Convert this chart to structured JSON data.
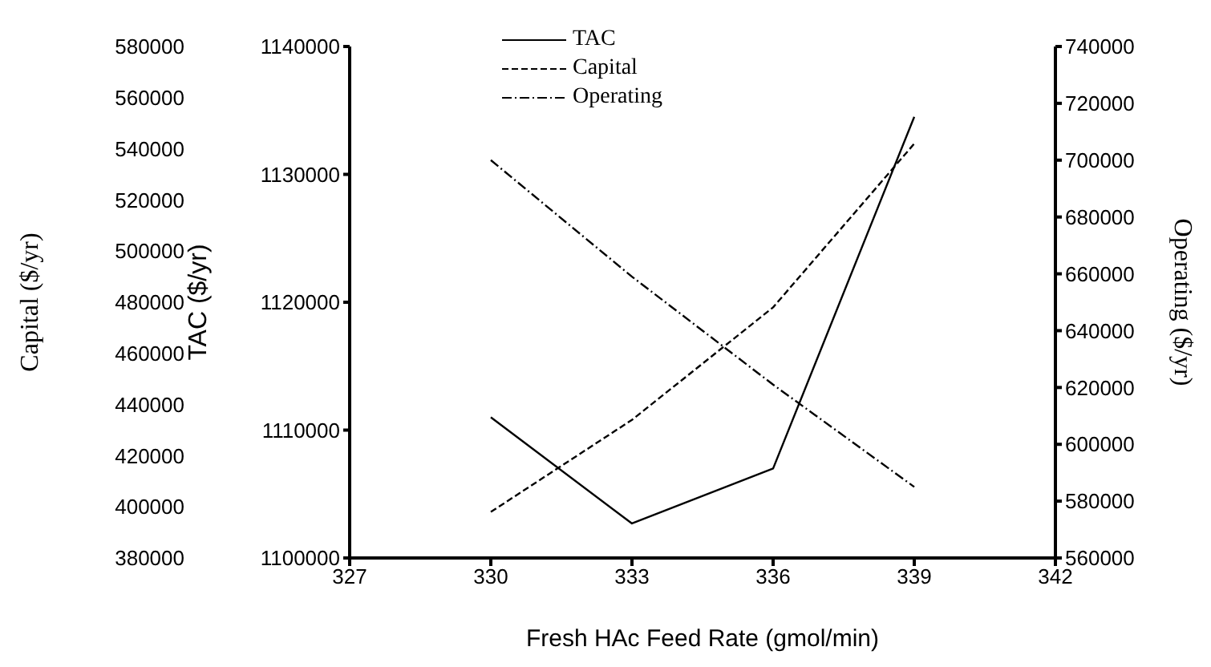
{
  "chart_data": {
    "type": "line",
    "xlabel": "Fresh HAc Feed Rate (gmol/min)",
    "ylabel": "TAC ($/yr)",
    "y2label": "Operating ($/yr)",
    "y3label": "Capital ($/yr)",
    "x": [
      330,
      333,
      336,
      339
    ],
    "series": [
      {
        "name": "TAC",
        "color": "#000000",
        "line_style": "solid",
        "values": [
          1111000,
          1102700,
          1107000,
          1134500
        ]
      },
      {
        "name": "Capital",
        "color": "#000000",
        "line_style": "dashed",
        "axis": "y3",
        "values": [
          398000,
          434000,
          478000,
          542000
        ]
      },
      {
        "name": "Operating",
        "color": "#000000",
        "line_style": "dotted",
        "axis": "y2",
        "values": [
          700000,
          659000,
          621000,
          585000
        ]
      }
    ],
    "xlim": [
      327,
      342
    ],
    "xticks": [
      327,
      330,
      333,
      336,
      339,
      342
    ],
    "ylim": [
      1100000,
      1140000
    ],
    "yticks": [
      1100000,
      1110000,
      1120000,
      1130000,
      1140000
    ],
    "y2lim": [
      560000,
      740000
    ],
    "y2ticks": [
      560000,
      580000,
      600000,
      620000,
      640000,
      660000,
      680000,
      700000,
      720000,
      740000
    ],
    "y3lim": [
      380000,
      580000
    ],
    "y3ticks": [
      380000,
      400000,
      420000,
      440000,
      460000,
      480000,
      500000,
      520000,
      540000,
      560000,
      580000
    ],
    "legend": "top",
    "marker": "none",
    "grid": false
  }
}
